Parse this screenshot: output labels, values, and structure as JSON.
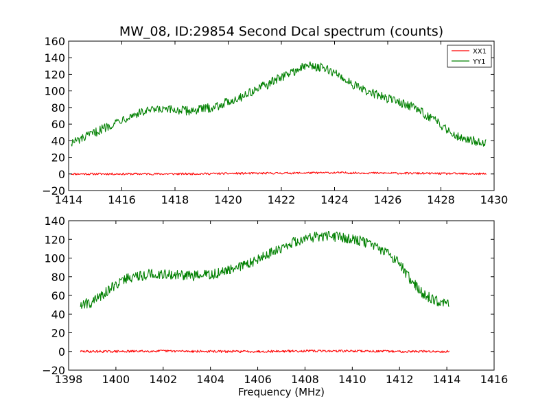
{
  "chart_data": [
    {
      "type": "line",
      "title": "MW_08, ID:29854 Second Dcal spectrum (counts)",
      "xlabel": "",
      "ylabel": "",
      "xlim": [
        1414,
        1430
      ],
      "ylim": [
        -20,
        160
      ],
      "xticks": [
        1414,
        1416,
        1418,
        1420,
        1422,
        1424,
        1426,
        1428,
        1430
      ],
      "yticks": [
        -20,
        0,
        20,
        40,
        60,
        80,
        100,
        120,
        140,
        160
      ],
      "grid": false,
      "legend": "top-right",
      "series": [
        {
          "name": "XX1",
          "color": "#ff0000",
          "x": [
            1414.1,
            1416.0,
            1418.0,
            1420.0,
            1422.0,
            1424.0,
            1426.0,
            1428.0,
            1429.7
          ],
          "y": [
            0,
            0,
            0,
            0.5,
            1,
            1.5,
            1,
            0.5,
            0
          ]
        },
        {
          "name": "YY1",
          "color": "#008000",
          "x": [
            1414.1,
            1414.5,
            1415.0,
            1415.5,
            1416.0,
            1416.5,
            1417.0,
            1417.5,
            1418.0,
            1418.5,
            1419.0,
            1419.5,
            1420.0,
            1420.5,
            1421.0,
            1421.5,
            1422.0,
            1422.5,
            1423.0,
            1423.5,
            1424.0,
            1424.5,
            1425.0,
            1425.5,
            1426.0,
            1426.5,
            1427.0,
            1427.5,
            1428.0,
            1428.5,
            1429.0,
            1429.7
          ],
          "y": [
            38,
            42,
            50,
            58,
            66,
            72,
            76,
            77,
            77,
            76,
            78,
            81,
            87,
            93,
            101,
            108,
            117,
            124,
            131,
            128,
            122,
            112,
            102,
            96,
            91,
            86,
            80,
            70,
            59,
            48,
            41,
            38
          ]
        }
      ]
    },
    {
      "type": "line",
      "title": "",
      "xlabel": "Frequency (MHz)",
      "ylabel": "",
      "xlim": [
        1398,
        1416
      ],
      "ylim": [
        -20,
        140
      ],
      "xticks": [
        1398,
        1400,
        1402,
        1404,
        1406,
        1408,
        1410,
        1412,
        1414,
        1416
      ],
      "yticks": [
        -20,
        0,
        20,
        40,
        60,
        80,
        100,
        120,
        140
      ],
      "grid": false,
      "series": [
        {
          "name": "",
          "color": "#ff0000",
          "x": [
            1398.5,
            1400.0,
            1402.0,
            1404.0,
            1406.0,
            1408.0,
            1410.0,
            1412.0,
            1414.1
          ],
          "y": [
            0,
            0,
            0.5,
            0,
            0,
            0.5,
            0.5,
            0,
            0
          ]
        },
        {
          "name": "",
          "color": "#008000",
          "x": [
            1398.5,
            1399.0,
            1399.5,
            1400.0,
            1400.5,
            1401.0,
            1401.5,
            1402.0,
            1402.5,
            1403.0,
            1403.5,
            1404.0,
            1404.5,
            1405.0,
            1405.5,
            1406.0,
            1406.5,
            1407.0,
            1407.5,
            1408.0,
            1408.5,
            1409.0,
            1409.5,
            1410.0,
            1410.5,
            1411.0,
            1411.5,
            1412.0,
            1412.5,
            1413.0,
            1413.5,
            1414.1
          ],
          "y": [
            50,
            53,
            62,
            72,
            79,
            81,
            83,
            83,
            82,
            81,
            81,
            82,
            85,
            88,
            93,
            99,
            105,
            111,
            117,
            121,
            123,
            124,
            122,
            121,
            117,
            112,
            106,
            94,
            76,
            61,
            55,
            50
          ]
        }
      ]
    }
  ]
}
